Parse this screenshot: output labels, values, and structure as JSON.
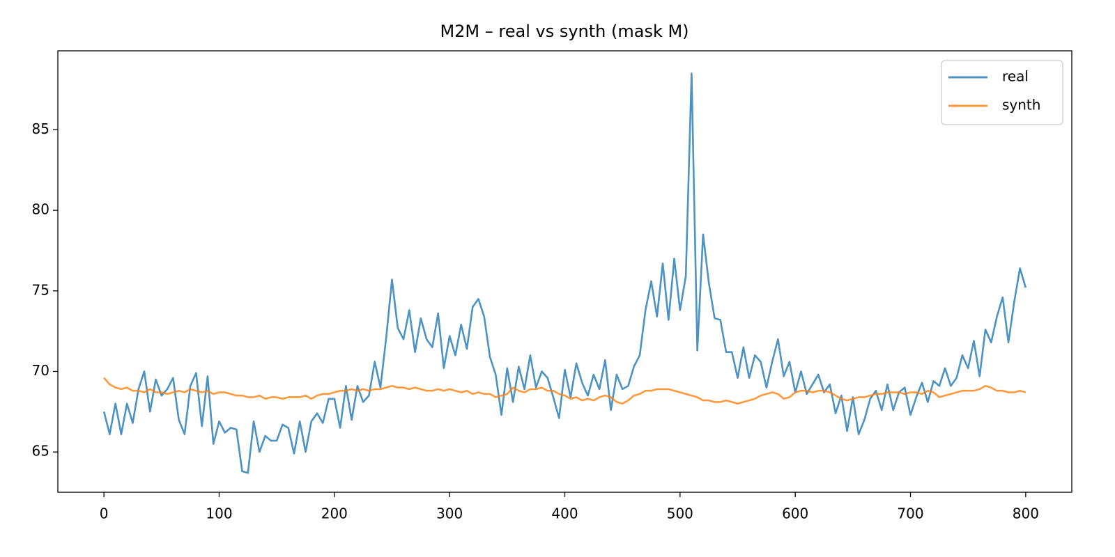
{
  "chart_data": {
    "type": "line",
    "title": "M2M – real vs synth (mask M)",
    "x": [
      0,
      5,
      10,
      15,
      20,
      25,
      30,
      35,
      40,
      45,
      50,
      55,
      60,
      65,
      70,
      75,
      80,
      85,
      90,
      95,
      100,
      105,
      110,
      115,
      120,
      125,
      130,
      135,
      140,
      145,
      150,
      155,
      160,
      165,
      170,
      175,
      180,
      185,
      190,
      195,
      200,
      205,
      210,
      215,
      220,
      225,
      230,
      235,
      240,
      245,
      250,
      255,
      260,
      265,
      270,
      275,
      280,
      285,
      290,
      295,
      300,
      305,
      310,
      315,
      320,
      325,
      330,
      335,
      340,
      345,
      350,
      355,
      360,
      365,
      370,
      375,
      380,
      385,
      390,
      395,
      400,
      405,
      410,
      415,
      420,
      425,
      430,
      435,
      440,
      445,
      450,
      455,
      460,
      465,
      470,
      475,
      480,
      485,
      490,
      495,
      500,
      505,
      510,
      515,
      520,
      525,
      530,
      535,
      540,
      545,
      550,
      555,
      560,
      565,
      570,
      575,
      580,
      585,
      590,
      595,
      600,
      605,
      610,
      615,
      620,
      625,
      630,
      635,
      640,
      645,
      650,
      655,
      660,
      665,
      670,
      675,
      680,
      685,
      690,
      695,
      700,
      705,
      710,
      715,
      720,
      725,
      730,
      735,
      740,
      745,
      750,
      755,
      760,
      765,
      770,
      775,
      780,
      785,
      790,
      795,
      800
    ],
    "series": [
      {
        "name": "real",
        "color": "#1f77b4",
        "values": [
          67.5,
          66.1,
          68.0,
          66.1,
          68.0,
          66.8,
          68.9,
          70.0,
          67.5,
          69.5,
          68.5,
          68.9,
          69.6,
          67.0,
          66.1,
          69.1,
          69.9,
          66.6,
          69.7,
          65.5,
          66.9,
          66.2,
          66.5,
          66.4,
          63.8,
          63.7,
          66.9,
          65.0,
          66.0,
          65.7,
          65.7,
          66.7,
          66.5,
          64.9,
          66.9,
          65.0,
          66.9,
          67.4,
          66.8,
          68.3,
          68.3,
          66.5,
          69.1,
          67.0,
          69.1,
          68.1,
          68.5,
          70.6,
          69.0,
          72.1,
          75.7,
          72.7,
          72.0,
          73.8,
          71.2,
          73.3,
          72.0,
          71.5,
          73.6,
          70.2,
          72.2,
          71.0,
          72.9,
          71.4,
          74.0,
          74.5,
          73.4,
          70.9,
          69.8,
          67.3,
          70.2,
          68.1,
          70.3,
          68.9,
          71.0,
          69.0,
          70.0,
          69.6,
          68.4,
          67.1,
          70.1,
          68.4,
          70.5,
          69.3,
          68.5,
          69.8,
          68.9,
          70.7,
          67.6,
          69.8,
          68.9,
          69.1,
          70.3,
          71.0,
          73.8,
          75.6,
          73.4,
          76.7,
          73.2,
          77.0,
          73.8,
          75.9,
          88.5,
          71.3,
          78.5,
          75.5,
          73.3,
          73.2,
          71.2,
          71.2,
          69.6,
          71.5,
          69.6,
          71.0,
          70.6,
          69.0,
          70.6,
          72.0,
          69.7,
          70.6,
          68.7,
          70.0,
          68.6,
          69.2,
          69.8,
          68.7,
          69.2,
          67.4,
          68.5,
          66.3,
          68.4,
          66.1,
          67.0,
          68.3,
          68.8,
          67.6,
          69.2,
          67.6,
          68.7,
          69.0,
          67.3,
          68.4,
          69.3,
          68.1,
          69.4,
          69.1,
          70.2,
          69.1,
          69.6,
          71.0,
          70.2,
          71.9,
          69.7,
          72.6,
          71.8,
          73.4,
          74.6,
          71.8,
          74.3,
          76.4,
          75.2
        ]
      },
      {
        "name": "synth",
        "color": "#ff7f0e",
        "values": [
          69.6,
          69.2,
          69.0,
          68.9,
          69.0,
          68.8,
          68.8,
          68.7,
          68.9,
          68.7,
          68.7,
          68.6,
          68.7,
          68.8,
          68.7,
          68.9,
          68.8,
          68.7,
          68.8,
          68.6,
          68.7,
          68.7,
          68.6,
          68.5,
          68.5,
          68.4,
          68.4,
          68.5,
          68.3,
          68.4,
          68.4,
          68.3,
          68.4,
          68.4,
          68.4,
          68.5,
          68.3,
          68.5,
          68.6,
          68.6,
          68.7,
          68.8,
          68.8,
          68.9,
          68.8,
          68.9,
          68.8,
          68.9,
          68.9,
          69.0,
          69.1,
          69.0,
          69.0,
          68.9,
          69.0,
          68.9,
          68.8,
          68.8,
          68.9,
          68.8,
          68.9,
          68.8,
          68.7,
          68.8,
          68.6,
          68.7,
          68.6,
          68.6,
          68.4,
          68.5,
          68.6,
          69.0,
          68.8,
          68.7,
          68.9,
          68.9,
          69.0,
          68.8,
          68.8,
          68.6,
          68.5,
          68.3,
          68.4,
          68.2,
          68.3,
          68.2,
          68.4,
          68.5,
          68.4,
          68.1,
          68.0,
          68.2,
          68.5,
          68.6,
          68.8,
          68.8,
          68.9,
          68.9,
          68.9,
          68.8,
          68.7,
          68.6,
          68.5,
          68.4,
          68.2,
          68.2,
          68.1,
          68.1,
          68.2,
          68.1,
          68.0,
          68.1,
          68.2,
          68.3,
          68.5,
          68.6,
          68.7,
          68.6,
          68.3,
          68.4,
          68.7,
          68.8,
          68.8,
          68.7,
          68.8,
          68.8,
          68.7,
          68.5,
          68.3,
          68.2,
          68.3,
          68.4,
          68.4,
          68.5,
          68.6,
          68.6,
          68.7,
          68.7,
          68.7,
          68.6,
          68.7,
          68.7,
          68.6,
          68.8,
          68.7,
          68.4,
          68.5,
          68.6,
          68.7,
          68.8,
          68.8,
          68.8,
          68.9,
          69.1,
          69.0,
          68.8,
          68.8,
          68.7,
          68.7,
          68.8,
          68.7
        ]
      }
    ],
    "xlim": [
      -40,
      840
    ],
    "ylim": [
      62.5,
      89.9
    ],
    "xticks": [
      0,
      100,
      200,
      300,
      400,
      500,
      600,
      700,
      800
    ],
    "yticks": [
      65,
      70,
      75,
      80,
      85
    ],
    "legend": "upper right"
  }
}
